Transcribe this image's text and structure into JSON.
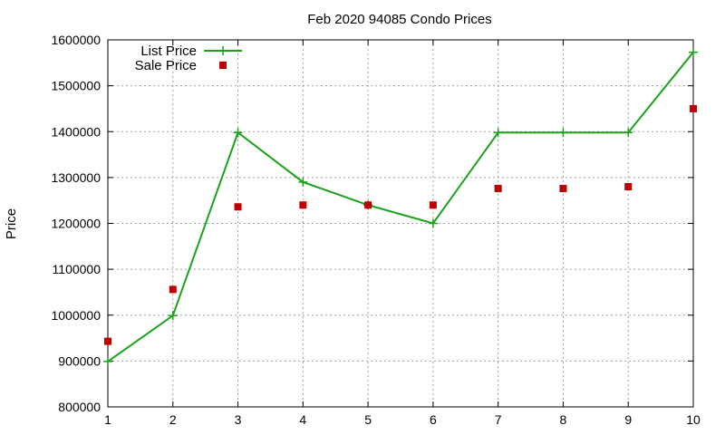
{
  "chart_data": {
    "type": "line",
    "title": "Feb 2020 94085 Condo Prices",
    "xlabel": "",
    "ylabel": "Price",
    "x": [
      1,
      2,
      3,
      4,
      5,
      6,
      7,
      8,
      9,
      10
    ],
    "xlim": [
      1,
      10
    ],
    "ylim": [
      800000,
      1600000
    ],
    "xticks": [
      1,
      2,
      3,
      4,
      5,
      6,
      7,
      8,
      9,
      10
    ],
    "yticks": [
      800000,
      900000,
      1000000,
      1100000,
      1200000,
      1300000,
      1400000,
      1500000,
      1600000
    ],
    "grid": true,
    "legend_position": "top-left",
    "series": [
      {
        "name": "List Price",
        "style": "line-with-plus-markers",
        "color": "#1aa31a",
        "values": [
          899000,
          999000,
          1398000,
          1290000,
          1240000,
          1200000,
          1398000,
          1398000,
          1398000,
          1573000
        ]
      },
      {
        "name": "Sale Price",
        "style": "square-markers",
        "color": "#c00000",
        "values": [
          943000,
          1056000,
          1236000,
          1240000,
          1240000,
          1240000,
          1276000,
          1276000,
          1280000,
          1450000
        ]
      }
    ]
  }
}
